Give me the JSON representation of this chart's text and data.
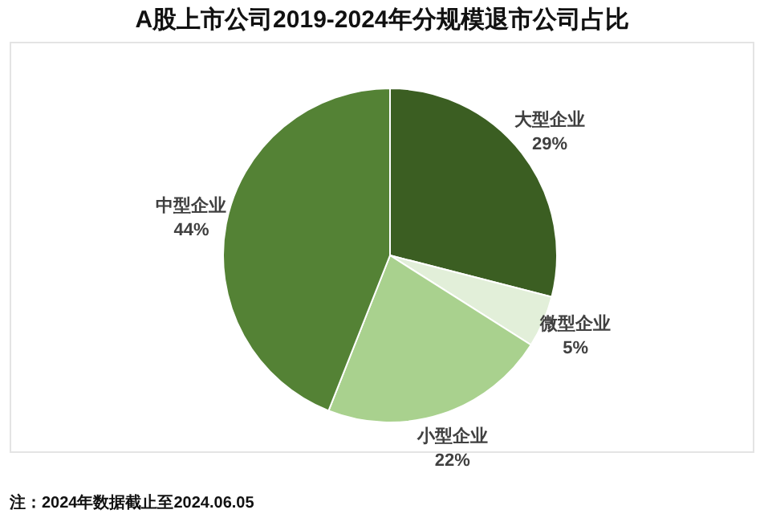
{
  "chart_data": {
    "type": "pie",
    "title": "A股上市公司2019-2024年分规模退市公司占比",
    "categories": [
      "大型企业",
      "微型企业",
      "小型企业",
      "中型企业"
    ],
    "values": [
      29,
      5,
      22,
      44
    ],
    "value_labels": [
      "29%",
      "5%",
      "22%",
      "44%"
    ],
    "colors": [
      "#3b5e22",
      "#e2efd9",
      "#a9d18e",
      "#548235"
    ],
    "legend": false,
    "annotations": [
      "注：2024年数据截止至2024.06.05"
    ]
  }
}
